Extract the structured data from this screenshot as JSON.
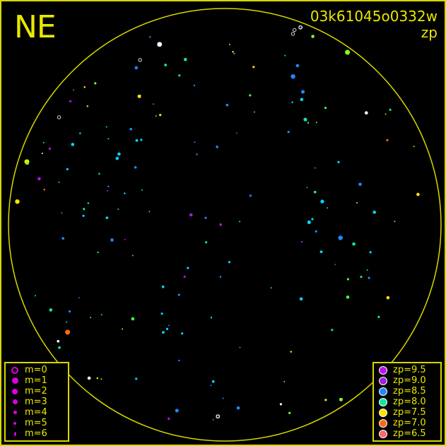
{
  "direction_label": "NE",
  "image_id": "03k61045o0332w",
  "mode_label": "zp",
  "circle_color": "#d8d800",
  "magnitude_legend": [
    {
      "label": "m=0",
      "style": "ring"
    },
    {
      "label": "m=1",
      "style": "dot"
    },
    {
      "label": "m=2",
      "style": "dot"
    },
    {
      "label": "m=3",
      "style": "dot"
    },
    {
      "label": "m=4",
      "style": "dot"
    },
    {
      "label": "m=5",
      "style": "dot"
    },
    {
      "label": "m=6",
      "style": "dot"
    }
  ],
  "magnitude_legend_color": "#e000e0",
  "zp_legend": [
    {
      "label": "zp=9.5",
      "color": "#c010f0"
    },
    {
      "label": "zp=9.0",
      "color": "#a020d8"
    },
    {
      "label": "zp=8.5",
      "color": "#2088ff"
    },
    {
      "label": "zp=8.0",
      "color": "#10e8a0"
    },
    {
      "label": "zp=7.5",
      "color": "#ffe000"
    },
    {
      "label": "zp=7.0",
      "color": "#ff6a10"
    },
    {
      "label": "zp=6.5",
      "color": "#ff6868"
    }
  ]
}
